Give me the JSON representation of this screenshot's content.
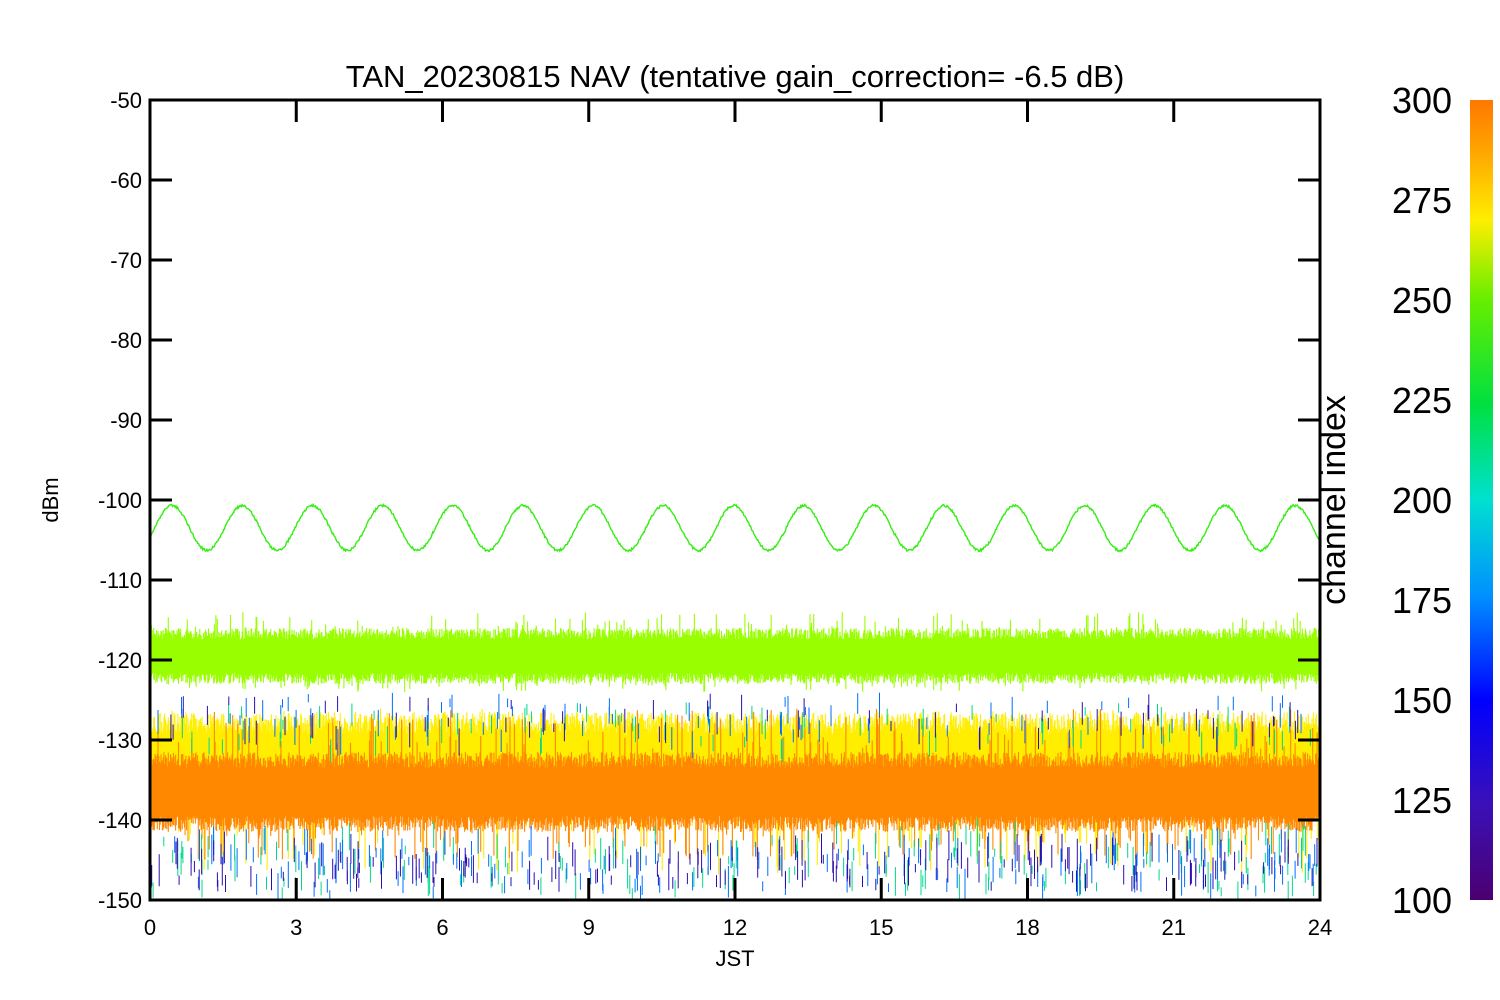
{
  "chart_data": {
    "type": "line",
    "title": "TAN_20230815 NAV (tentative gain_correction= -6.5 dB)",
    "xlabel": "JST",
    "ylabel": "dBm",
    "xlim": [
      0,
      24
    ],
    "ylim": [
      -150,
      -50
    ],
    "x_ticks": [
      "0",
      "3",
      "6",
      "9",
      "12",
      "15",
      "18",
      "21",
      "24"
    ],
    "y_ticks": [
      "-50",
      "-60",
      "-70",
      "-80",
      "-90",
      "-100",
      "-110",
      "-120",
      "-130",
      "-140",
      "-150"
    ],
    "colorbar": {
      "label": "channel index",
      "range": [
        100,
        300
      ],
      "ticks": [
        "300",
        "275",
        "250",
        "225",
        "200",
        "175",
        "150",
        "125",
        "100"
      ],
      "colormap": "rainbow (purple → blue → cyan → green → yellow → orange)"
    },
    "series": [
      {
        "channel": 245,
        "color": "#33ee11",
        "kind": "sinusoid",
        "center": -103.5,
        "amplitude": 2.8,
        "period_hours": 1.44,
        "start_x": 0,
        "end_x": 24,
        "noise": 0.3
      },
      {
        "channel": 260,
        "color": "#99ff00",
        "kind": "noise_band",
        "center": -119.5,
        "half_width": 3.5,
        "spike_low": -124,
        "spike_high": -114
      },
      {
        "channel": 270,
        "color": "#ffee00",
        "kind": "noise_band",
        "center": -133,
        "half_width": 6.5,
        "spike_low": -147,
        "spike_high": -126
      },
      {
        "channel": 285,
        "color": "#ff8800",
        "kind": "noise_band",
        "center": -136.5,
        "half_width": 5,
        "spike_low": -145,
        "spike_high": -126
      },
      {
        "channel": 190,
        "color": "#00d890",
        "kind": "spikes",
        "low_range": [
          -150,
          -143
        ],
        "high_range": [
          -130,
          -125
        ]
      },
      {
        "channel": 155,
        "color": "#0070ff",
        "kind": "spikes",
        "low_range": [
          -150,
          -144
        ],
        "high_range": [
          -129,
          -124
        ]
      },
      {
        "channel": 120,
        "color": "#2a10b0",
        "kind": "spikes",
        "low_range": [
          -149,
          -145
        ],
        "high_range": [
          -129,
          -124
        ]
      }
    ]
  }
}
